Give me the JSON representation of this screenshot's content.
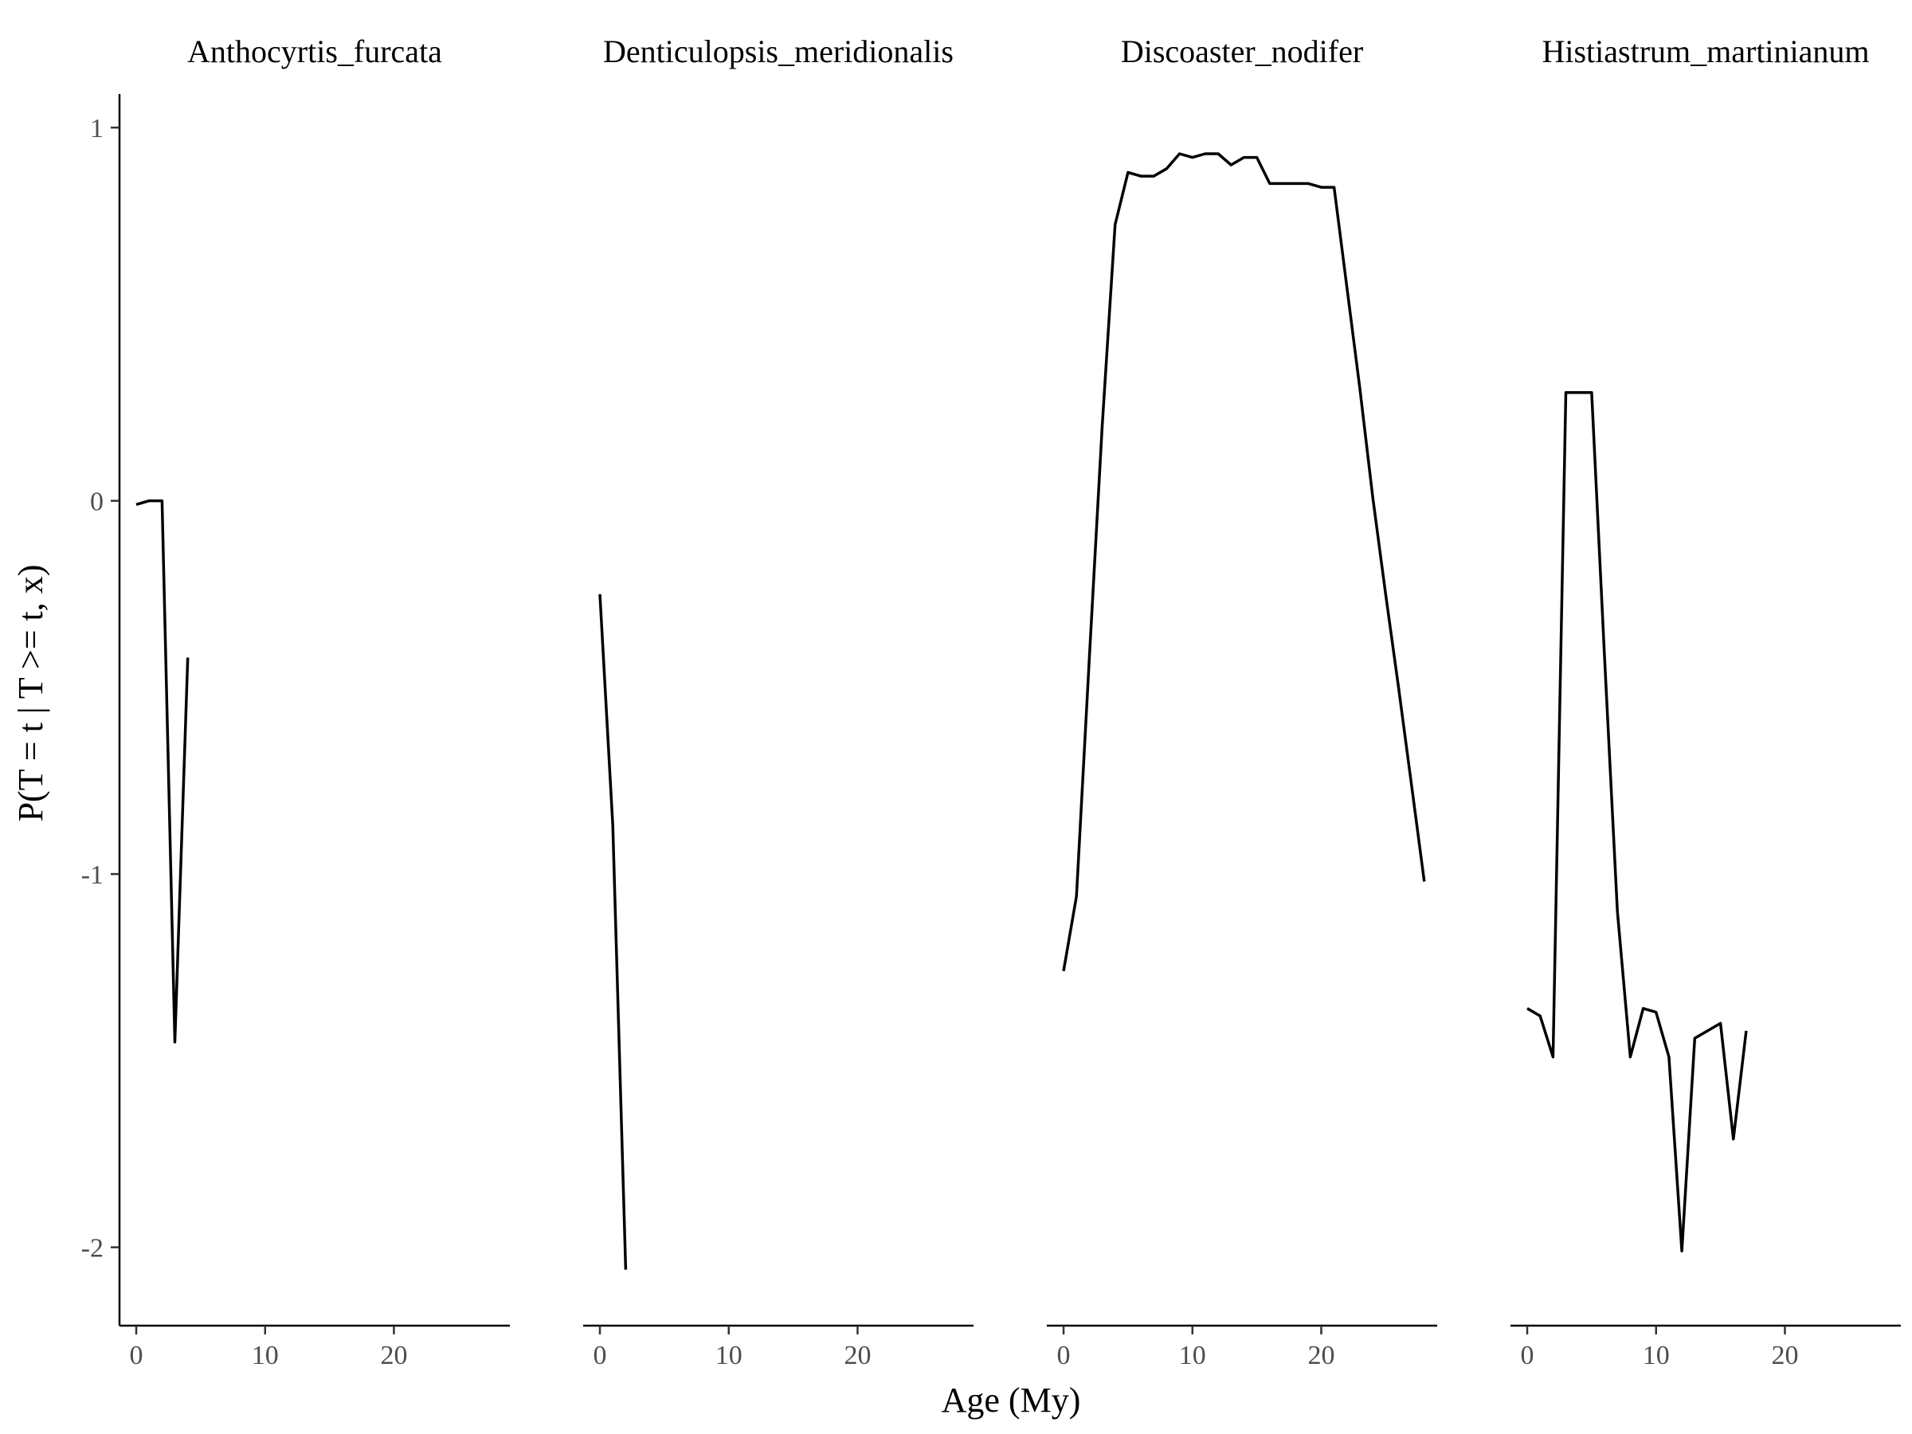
{
  "chart_data": {
    "type": "line",
    "facet": true,
    "xlabel": "Age (My)",
    "ylabel": "P(T = t | T >= t, x)",
    "xlim": [
      -1.3,
      29
    ],
    "ylim": [
      -2.21,
      1.09
    ],
    "x_ticks": [
      0,
      10,
      20
    ],
    "y_ticks": [
      1,
      0,
      -1,
      -2
    ],
    "x_tick_labels": [
      "0",
      "10",
      "20"
    ],
    "y_tick_labels": [
      "1",
      "0",
      "-1",
      "-2"
    ],
    "grid": false,
    "line_color": "#000000",
    "panels": [
      {
        "title": "Anthocyrtis_furcata",
        "x": [
          0,
          1,
          2,
          3,
          4
        ],
        "y": [
          -0.01,
          0.0,
          0.0,
          -1.45,
          -0.42
        ]
      },
      {
        "title": "Denticulopsis_meridionalis",
        "x": [
          0,
          1,
          2
        ],
        "y": [
          -0.25,
          -0.87,
          -2.06
        ]
      },
      {
        "title": "Discoaster_nodifer",
        "x": [
          0,
          1,
          2,
          3,
          4,
          5,
          6,
          7,
          8,
          9,
          10,
          11,
          12,
          13,
          14,
          15,
          16,
          17,
          18,
          19,
          20,
          21,
          22,
          23,
          24,
          25,
          26,
          27,
          28
        ],
        "y": [
          -1.26,
          -1.06,
          -0.42,
          0.2,
          0.74,
          0.88,
          0.87,
          0.87,
          0.89,
          0.93,
          0.92,
          0.93,
          0.93,
          0.9,
          0.92,
          0.92,
          0.85,
          0.85,
          0.85,
          0.85,
          0.84,
          0.84,
          0.57,
          0.3,
          0.01,
          -0.25,
          -0.5,
          -0.76,
          -1.02
        ]
      },
      {
        "title": "Histiastrum_martinianum",
        "x": [
          0,
          1,
          2,
          3,
          4,
          5,
          6,
          7,
          8,
          9,
          10,
          11,
          12,
          13,
          14,
          15,
          16,
          17
        ],
        "y": [
          -1.36,
          -1.38,
          -1.49,
          0.29,
          0.29,
          0.29,
          -0.42,
          -1.1,
          -1.49,
          -1.36,
          -1.37,
          -1.49,
          -2.01,
          -1.44,
          -1.42,
          -1.4,
          -1.71,
          -1.42
        ]
      }
    ]
  }
}
